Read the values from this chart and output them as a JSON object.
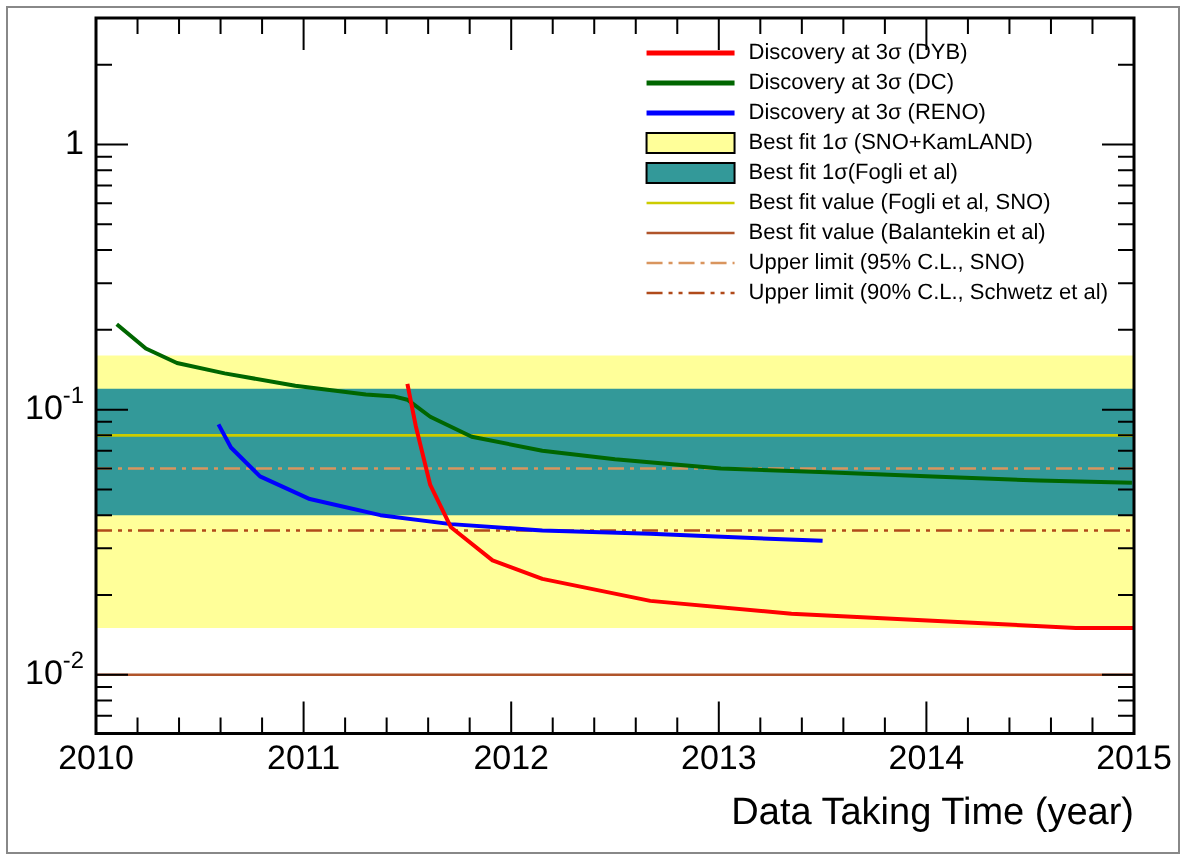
{
  "chart_data": {
    "type": "line",
    "xlabel": "Data Taking Time (year)",
    "log": "y",
    "legend": "top right",
    "grid": false,
    "line_style": "solid",
    "marker": "none",
    "xlim": [
      2010,
      2015
    ],
    "xticks": [
      2010,
      2011,
      2012,
      2013,
      2014,
      2015
    ],
    "ylim": [
      0.006,
      3
    ],
    "yticks": [
      {
        "value": 0.007,
        "label": null
      },
      {
        "value": 0.008,
        "label": null
      },
      {
        "value": 0.009,
        "label": null
      },
      {
        "value": 0.01,
        "label": "10$^{-2}$"
      },
      {
        "value": 0.02,
        "label": null
      },
      {
        "value": 0.03,
        "label": null
      },
      {
        "value": 0.04,
        "label": null
      },
      {
        "value": 0.05,
        "label": null
      },
      {
        "value": 0.06,
        "label": null
      },
      {
        "value": 0.07,
        "label": null
      },
      {
        "value": 0.08,
        "label": null
      },
      {
        "value": 0.09,
        "label": null
      },
      {
        "value": 0.1,
        "label": "10$^{-1}$"
      },
      {
        "value": 0.2,
        "label": null
      },
      {
        "value": 0.3,
        "label": null
      },
      {
        "value": 0.4,
        "label": null
      },
      {
        "value": 0.5,
        "label": null
      },
      {
        "value": 0.6,
        "label": null
      },
      {
        "value": 0.7,
        "label": null
      },
      {
        "value": 0.8,
        "label": null
      },
      {
        "value": 0.9,
        "label": null
      },
      {
        "value": 1,
        "label": "1"
      },
      {
        "value": 2,
        "label": null
      },
      {
        "value": 3,
        "label": null
      }
    ],
    "series": [
      {
        "name": "Discovery at 3σ (DYB)",
        "color": "#ff0000",
        "x": [
          2011.5,
          2011.54,
          2011.61,
          2011.71,
          2011.91,
          2012.15,
          2012.67,
          2013.35,
          2014.03,
          2014.72,
          2015.0
        ],
        "values": [
          0.125,
          0.087,
          0.052,
          0.036,
          0.027,
          0.023,
          0.019,
          0.017,
          0.016,
          0.015,
          0.015
        ]
      },
      {
        "name": "Discovery at 3σ (DC)",
        "color": "#006600",
        "x": [
          2010.1,
          2010.24,
          2010.39,
          2010.62,
          2010.96,
          2011.3,
          2011.44,
          2011.5,
          2011.61,
          2011.81,
          2012.15,
          2012.5,
          2013.01,
          2013.52,
          2014.03,
          2014.54,
          2014.99
        ],
        "values": [
          0.21,
          0.17,
          0.15,
          0.137,
          0.123,
          0.114,
          0.112,
          0.109,
          0.094,
          0.079,
          0.07,
          0.065,
          0.06,
          0.058,
          0.056,
          0.054,
          0.053
        ]
      },
      {
        "name": "Discovery at 3σ (RENO)",
        "color": "#0000ff",
        "x": [
          2010.59,
          2010.65,
          2010.79,
          2011.03,
          2011.37,
          2011.71,
          2012.15,
          2012.67,
          2013.5
        ],
        "values": [
          0.088,
          0.072,
          0.056,
          0.046,
          0.04,
          0.037,
          0.035,
          0.034,
          0.032
        ]
      }
    ],
    "bands": [
      {
        "axis": "y",
        "from": 0.015,
        "to": 0.16,
        "label": "Best fit 1σ (SNO+KamLAND)",
        "color": "#ffff99"
      },
      {
        "axis": "y",
        "from": 0.04,
        "to": 0.12,
        "label": "Best fit 1σ(Fogli et al)",
        "color": "#339999"
      }
    ],
    "ref_lines": [
      {
        "axis": "y",
        "value": 0.08,
        "label": "Best fit value (Fogli et al, SNO)",
        "color": "#cccc00",
        "line_style": "solid"
      },
      {
        "axis": "y",
        "value": 0.01,
        "label": "Best fit value (Balantekin et al)",
        "color": "#b0542a",
        "line_style": "solid"
      },
      {
        "axis": "y",
        "value": 0.06,
        "label": "Upper limit (95% C.L., SNO)",
        "color": "#d9955e",
        "line_style": "dashdot"
      },
      {
        "axis": "y",
        "value": 0.035,
        "label": "Upper limit (90% C.L., Schwetz et al)",
        "color": "#b04a1a",
        "line_style": "dashdotdot"
      }
    ]
  }
}
